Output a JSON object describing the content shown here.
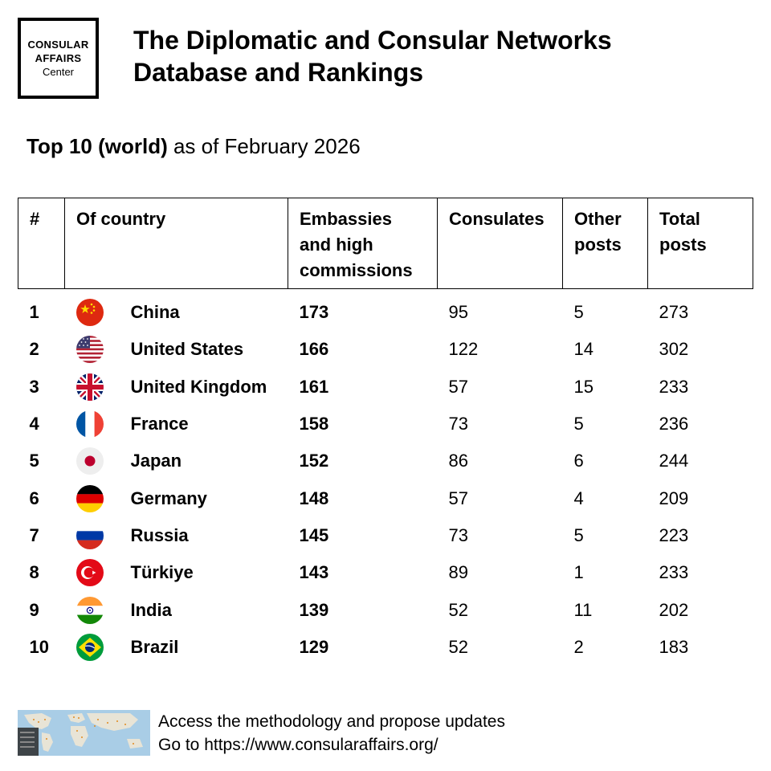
{
  "logo": {
    "line1": "CONSULAR",
    "line2": "AFFAIRS",
    "line3": "Center"
  },
  "title_line1": "The Diplomatic and Consular Networks",
  "title_line2": "Database and Rankings",
  "subtitle_bold": "Top 10 (world)",
  "subtitle_rest": " as of February 2026",
  "table": {
    "headers": {
      "rank": "#",
      "country": "Of country",
      "embassies_l1": "Embassies",
      "embassies_l2": "and high",
      "embassies_l3": "commissions",
      "consulates": "Consulates",
      "other_l1": "Other",
      "other_l2": "posts",
      "total_l1": "Total",
      "total_l2": "posts"
    },
    "rows": [
      {
        "rank": "1",
        "country": "China",
        "flag": "china-flag-icon",
        "embassies": "173",
        "consulates": "95",
        "other": "5",
        "total": "273"
      },
      {
        "rank": "2",
        "country": "United States",
        "flag": "usa-flag-icon",
        "embassies": "166",
        "consulates": "122",
        "other": "14",
        "total": "302"
      },
      {
        "rank": "3",
        "country": "United Kingdom",
        "flag": "uk-flag-icon",
        "embassies": "161",
        "consulates": "57",
        "other": "15",
        "total": "233"
      },
      {
        "rank": "4",
        "country": "France",
        "flag": "france-flag-icon",
        "embassies": "158",
        "consulates": "73",
        "other": "5",
        "total": "236"
      },
      {
        "rank": "5",
        "country": "Japan",
        "flag": "japan-flag-icon",
        "embassies": "152",
        "consulates": "86",
        "other": "6",
        "total": "244"
      },
      {
        "rank": "6",
        "country": "Germany",
        "flag": "germany-flag-icon",
        "embassies": "148",
        "consulates": "57",
        "other": "4",
        "total": "209"
      },
      {
        "rank": "7",
        "country": "Russia",
        "flag": "russia-flag-icon",
        "embassies": "145",
        "consulates": "73",
        "other": "5",
        "total": "223"
      },
      {
        "rank": "8",
        "country": "Türkiye",
        "flag": "turkiye-flag-icon",
        "embassies": "143",
        "consulates": "89",
        "other": "1",
        "total": "233"
      },
      {
        "rank": "9",
        "country": "India",
        "flag": "india-flag-icon",
        "embassies": "139",
        "consulates": "52",
        "other": "11",
        "total": "202"
      },
      {
        "rank": "10",
        "country": "Brazil",
        "flag": "brazil-flag-icon",
        "embassies": "129",
        "consulates": "52",
        "other": "2",
        "total": "183"
      }
    ]
  },
  "footer": {
    "line1": "Access the methodology and propose updates",
    "line2": "Go to https://www.consularaffairs.org/",
    "map_icon": "world-map-thumbnail"
  }
}
